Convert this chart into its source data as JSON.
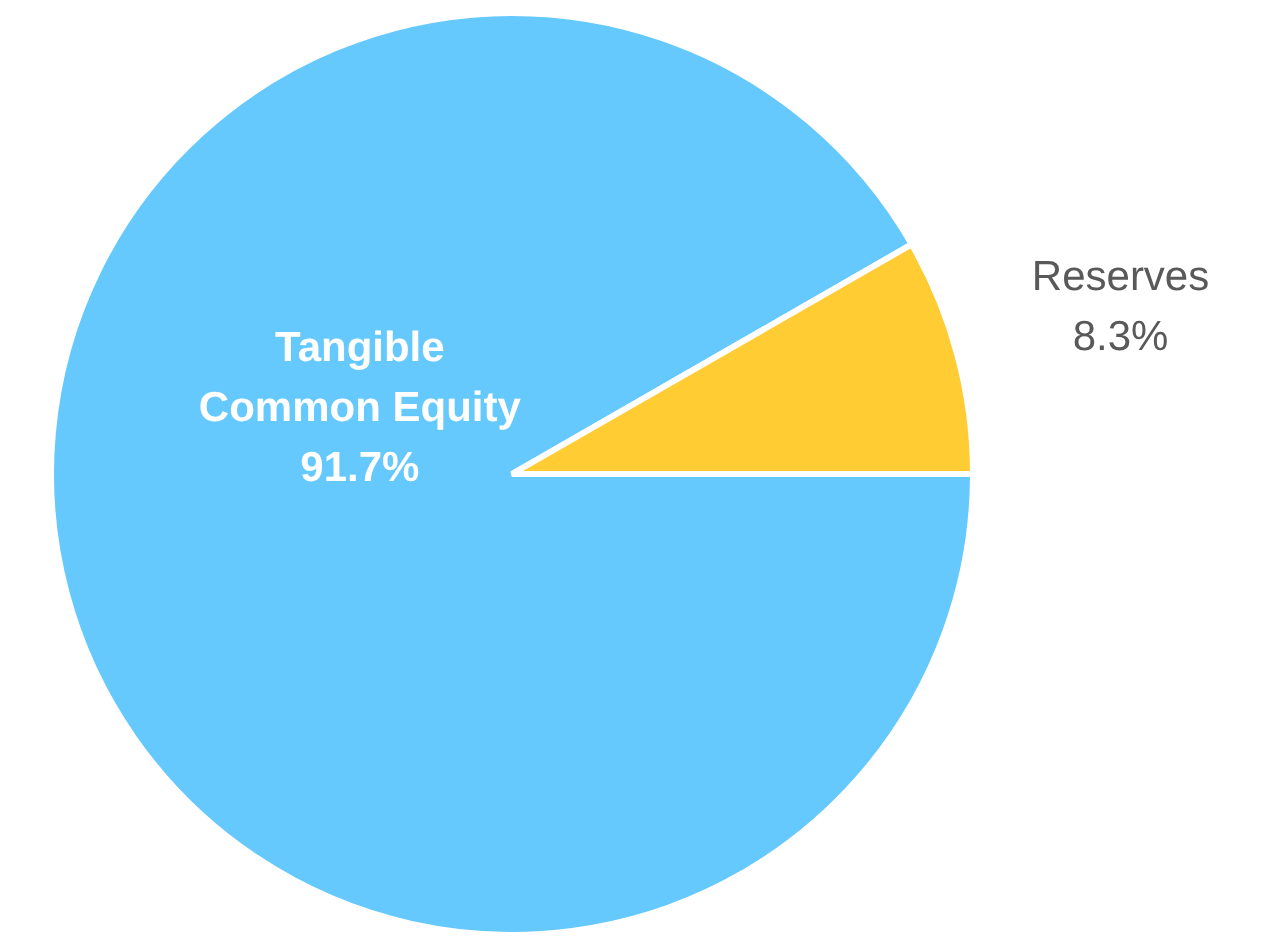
{
  "chart_data": {
    "type": "pie",
    "categories": [
      "Tangible Common Equity",
      "Reserves"
    ],
    "values": [
      91.7,
      8.3
    ],
    "colors": [
      "#66c9fd",
      "#ffcc33"
    ],
    "value_labels": [
      "91.7%",
      "8.3%"
    ],
    "legend": false
  }
}
